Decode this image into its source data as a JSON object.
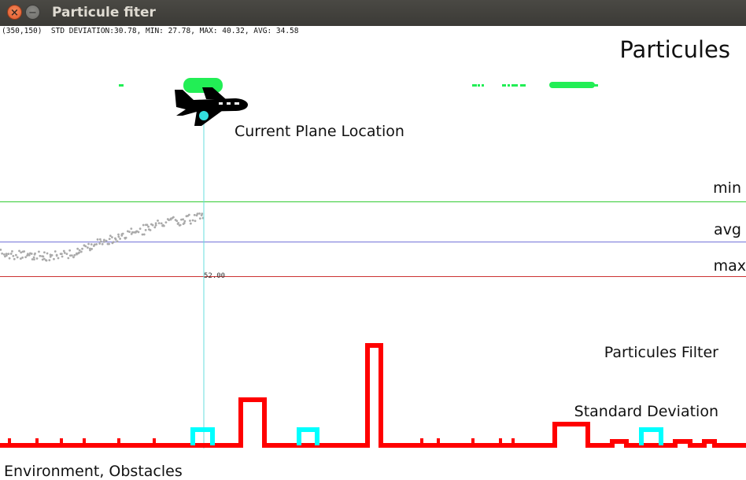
{
  "window": {
    "title": "Particule fiter",
    "close_glyph": "×",
    "minimize_glyph": "−"
  },
  "status": {
    "text": "(350,150)  STD DEVIATION:30.78, MIN: 27.78, MAX: 40.32, AVG: 34.58"
  },
  "labels": {
    "particules": "Particules",
    "plane": "Current Plane Location",
    "min": "min",
    "avg": "avg",
    "max": "max",
    "std_line1": "Particules Filter",
    "std_line2": "Standard Deviation",
    "environment": "Environment, Obstacles",
    "marker_value": "52.00"
  },
  "colors": {
    "particles": "#22ee55",
    "plane": "#000000",
    "plane_marker": "#33dddd",
    "min_line": "#33cc33",
    "avg_line": "#8888dd",
    "max_line": "#cc3333",
    "history_points": "#aaaaaa",
    "environment": "#ff0000",
    "environment_highlight": "#00ffff"
  },
  "icons": {
    "plane": "airplane-icon",
    "close": "close-icon",
    "minimize": "minimize-icon"
  }
}
